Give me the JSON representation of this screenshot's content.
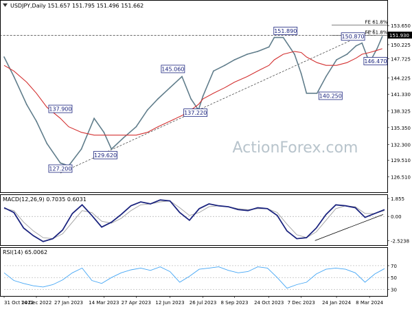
{
  "chart_data": [
    {
      "type": "line",
      "panel": "price",
      "title": "USDJPY,Daily  151.657 151.795 151.496 151.662",
      "ylim": [
        124.0,
        156.5
      ],
      "y_ticks": [
        "153.650",
        "150.225",
        "147.725",
        "144.225",
        "141.330",
        "138.325",
        "135.350",
        "132.300",
        "129.510",
        "126.510"
      ],
      "x_ticks": [
        "31 Oct 2022",
        "14 Dec 2022",
        "27 Jan 2023",
        "14 Mar 2023",
        "27 Apr 2023",
        "12 Jun 2023",
        "26 Jul 2023",
        "8 Sep 2023",
        "24 Oct 2023",
        "7 Dec 2023",
        "24 Jan 2024",
        "8 Mar 2024"
      ],
      "last_price_label": "151.930",
      "horizontal_lines": [
        {
          "label": "FE 61.8%",
          "value": 153.7
        },
        {
          "label": "FE 61.8%",
          "value": 151.9
        }
      ],
      "annotations": [
        {
          "label": "151.890",
          "x": "Nov 2023",
          "value": 151.89
        },
        {
          "label": "150.870",
          "x": "Feb 2024",
          "value": 150.87
        },
        {
          "label": "146.470",
          "x": "Mar 2024",
          "value": 146.47
        },
        {
          "label": "145.060",
          "x": "Jun 2023",
          "value": 145.06
        },
        {
          "label": "137.900",
          "x": "Jan 2023",
          "value": 137.9
        },
        {
          "label": "137.220",
          "x": "Jul 2023",
          "value": 137.22
        },
        {
          "label": "140.250",
          "x": "Jan 2024",
          "value": 140.25
        },
        {
          "label": "129.620",
          "x": "Mar 2023",
          "value": 129.62
        },
        {
          "label": "127.200",
          "x": "Jan 2023",
          "value": 127.2
        }
      ],
      "series": [
        {
          "color": "#607d8b",
          "x": [
            "31 Oct 2022",
            "14 Nov 2022",
            "1 Dec 2022",
            "14 Dec 2022",
            "28 Dec 2022",
            "16 Jan 2023",
            "27 Jan 2023",
            "14 Feb 2023",
            "1 Mar 2023",
            "14 Mar 2023",
            "24 Mar 2023",
            "10 Apr 2023",
            "27 Apr 2023",
            "12 May 2023",
            "26 May 2023",
            "12 Jun 2023",
            "28 Jun 2023",
            "10 Jul 2023",
            "20 Jul 2023",
            "26 Jul 2023",
            "10 Aug 2023",
            "25 Aug 2023",
            "8 Sep 2023",
            "25 Sep 2023",
            "9 Oct 2023",
            "24 Oct 2023",
            "1 Nov 2023",
            "13 Nov 2023",
            "28 Nov 2023",
            "7 Dec 2023",
            "14 Dec 2023",
            "28 Dec 2023",
            "10 Jan 2024",
            "24 Jan 2024",
            "8 Feb 2024",
            "20 Feb 2024",
            "28 Feb 2024",
            "8 Mar 2024",
            "18 Mar 2024",
            "25 Mar 2024"
          ],
          "values": [
            148.0,
            144.5,
            139.5,
            136.5,
            132.5,
            129.0,
            128.5,
            131.5,
            137.0,
            134.5,
            131.5,
            133.5,
            135.5,
            138.5,
            140.5,
            142.5,
            144.5,
            140.5,
            138.5,
            141.0,
            145.5,
            146.5,
            147.5,
            148.5,
            149.0,
            149.8,
            151.5,
            151.5,
            148.5,
            145.0,
            141.5,
            141.5,
            144.5,
            147.5,
            148.5,
            150.0,
            150.5,
            147.0,
            149.5,
            151.66
          ]
        },
        {
          "color": "#d32f2f",
          "x": [
            "31 Oct 2022",
            "14 Nov 2022",
            "1 Dec 2022",
            "14 Dec 2022",
            "28 Dec 2022",
            "16 Jan 2023",
            "27 Jan 2023",
            "14 Feb 2023",
            "1 Mar 2023",
            "14 Mar 2023",
            "24 Mar 2023",
            "10 Apr 2023",
            "27 Apr 2023",
            "12 May 2023",
            "26 May 2023",
            "12 Jun 2023",
            "28 Jun 2023",
            "10 Jul 2023",
            "20 Jul 2023",
            "26 Jul 2023",
            "10 Aug 2023",
            "25 Aug 2023",
            "8 Sep 2023",
            "25 Sep 2023",
            "9 Oct 2023",
            "24 Oct 2023",
            "1 Nov 2023",
            "13 Nov 2023",
            "28 Nov 2023",
            "7 Dec 2023",
            "14 Dec 2023",
            "28 Dec 2023",
            "10 Jan 2024",
            "24 Jan 2024",
            "8 Feb 2024",
            "20 Feb 2024",
            "28 Feb 2024",
            "8 Mar 2024",
            "18 Mar 2024",
            "25 Mar 2024"
          ],
          "values": [
            146.5,
            145.5,
            143.5,
            141.5,
            139.0,
            137.0,
            135.5,
            134.5,
            134.0,
            134.0,
            134.0,
            134.0,
            134.0,
            134.5,
            135.5,
            136.5,
            137.5,
            138.5,
            139.5,
            140.5,
            141.5,
            142.5,
            143.5,
            144.5,
            145.5,
            146.5,
            147.5,
            148.5,
            149.0,
            148.8,
            148.0,
            147.0,
            146.5,
            146.5,
            147.0,
            147.8,
            148.5,
            148.8,
            149.2,
            149.5
          ]
        }
      ],
      "trendlines": [
        {
          "style": "dashed",
          "from": {
            "x": "Jan 2023",
            "value": 127.2
          },
          "to": {
            "x": "Mar 2024",
            "value": 153.0
          }
        },
        {
          "style": "dashed",
          "from": {
            "x": "Oct 2022",
            "value": 151.9
          },
          "to": {
            "x": "Mar 2024",
            "value": 151.9
          }
        }
      ]
    },
    {
      "type": "line",
      "panel": "macd",
      "title": "MACD(12,26,9) 0.7035 0.6031",
      "ylim": [
        -2.9,
        2.0
      ],
      "y_ticks": [
        "1.855",
        "0.00",
        "-2.5238"
      ],
      "series": [
        {
          "color": "#1a237e",
          "values": [
            0.9,
            0.4,
            -1.2,
            -2.0,
            -2.6,
            -2.3,
            -1.4,
            0.3,
            1.2,
            0.1,
            -1.1,
            -0.6,
            0.2,
            1.1,
            1.5,
            1.3,
            1.7,
            1.6,
            0.4,
            -0.4,
            0.8,
            1.3,
            1.1,
            1.0,
            0.7,
            0.6,
            0.9,
            0.8,
            0.1,
            -1.5,
            -2.3,
            -2.2,
            -1.2,
            0.2,
            1.2,
            1.1,
            0.9,
            -0.1,
            0.3,
            0.7
          ]
        },
        {
          "color": "#9e9e9e",
          "values": [
            0.8,
            0.6,
            -0.6,
            -1.5,
            -2.2,
            -2.3,
            -1.8,
            -0.6,
            0.6,
            0.4,
            -0.5,
            -0.7,
            -0.2,
            0.6,
            1.2,
            1.3,
            1.5,
            1.6,
            0.9,
            0.1,
            0.4,
            1.0,
            1.1,
            1.0,
            0.8,
            0.7,
            0.8,
            0.8,
            0.4,
            -0.8,
            -1.9,
            -2.2,
            -1.6,
            -0.4,
            0.8,
            1.1,
            1.0,
            0.3,
            0.3,
            0.6
          ]
        }
      ],
      "trendlines": [
        {
          "style": "solid",
          "from": {
            "x": "Dec 2023",
            "value": -2.5
          },
          "to": {
            "x": "Mar 2024",
            "value": 0.2
          }
        }
      ]
    },
    {
      "type": "line",
      "panel": "rsi",
      "title": "RSI(14) 65.0062",
      "ylim": [
        20,
        85
      ],
      "y_ticks": [
        "70",
        "50",
        "30"
      ],
      "series": [
        {
          "color": "#42a5f5",
          "values": [
            58,
            45,
            40,
            36,
            34,
            38,
            46,
            58,
            66,
            45,
            40,
            50,
            58,
            63,
            66,
            62,
            68,
            60,
            42,
            52,
            64,
            66,
            68,
            62,
            58,
            60,
            68,
            66,
            50,
            32,
            38,
            42,
            56,
            64,
            66,
            64,
            58,
            42,
            56,
            65
          ]
        }
      ]
    }
  ],
  "watermark": "ActionForex.com"
}
